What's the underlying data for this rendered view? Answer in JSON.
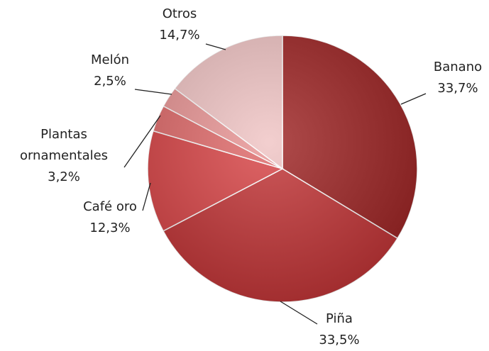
{
  "chart_data": {
    "type": "pie",
    "categories": [
      "Banano",
      "Piña",
      "Café oro",
      "Plantas ornamentales",
      "Melón",
      "Otros"
    ],
    "values": [
      33.7,
      33.5,
      12.3,
      3.2,
      2.5,
      14.7
    ],
    "value_labels": [
      "33,7%",
      "33,5%",
      "12,3%",
      "3,2%",
      "2,5%",
      "14,7%"
    ],
    "colors": [
      "#9e2424",
      "#c23436",
      "#d84446",
      "#e06a6a",
      "#e99595",
      "#f0c4c4"
    ]
  }
}
